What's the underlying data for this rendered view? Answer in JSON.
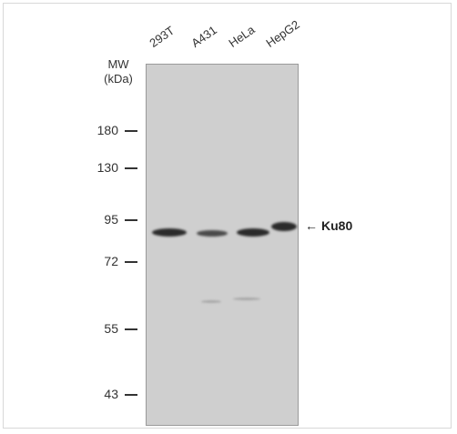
{
  "lanes": [
    "293T",
    "A431",
    "HeLa",
    "HepG2"
  ],
  "mw": {
    "header_line1": "MW",
    "header_line2": "(kDa)",
    "markers": [
      "180",
      "130",
      "95",
      "72",
      "55",
      "43"
    ]
  },
  "target": {
    "arrow": "←",
    "label": "Ku80"
  }
}
